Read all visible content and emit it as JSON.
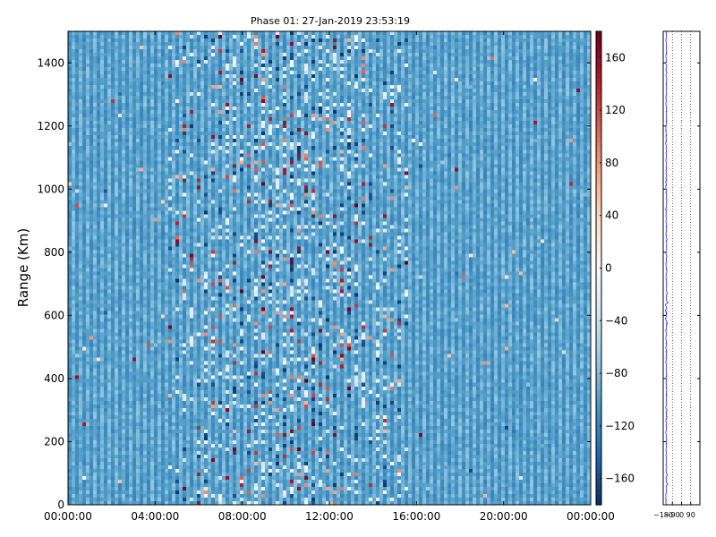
{
  "chart_data": [
    {
      "type": "heatmap",
      "title": "Phase 01: 27-Jan-2019 23:53:19",
      "xlabel": "",
      "ylabel": "Range (Km)",
      "x_ticks": [
        "00:00:00",
        "04:00:00",
        "08:00:00",
        "12:00:00",
        "16:00:00",
        "20:00:00",
        "00:00:00"
      ],
      "xlim_hours": [
        0,
        24
      ],
      "y_ticks": [
        0,
        200,
        400,
        600,
        800,
        1000,
        1200,
        1400
      ],
      "ylim": [
        0,
        1500
      ],
      "colorbar": {
        "colormap": "RdBu_r",
        "range": [
          -180,
          180
        ],
        "ticks": [
          160,
          120,
          80,
          40,
          0,
          -40,
          -80,
          -120,
          -160
        ],
        "colors": [
          "#67001f",
          "#b2182b",
          "#d6604d",
          "#f4a582",
          "#fddbc7",
          "#f7f7f7",
          "#d1e5f0",
          "#92c5de",
          "#4393c3",
          "#2166ac",
          "#053061"
        ]
      },
      "dominant_value": -110,
      "noisy_interval_hours": [
        4.5,
        15.5
      ]
    },
    {
      "type": "line",
      "x_ticks": [
        "-180",
        "-90",
        "0",
        "90"
      ],
      "xlim": [
        -180,
        180
      ],
      "ylim": [
        0,
        1500
      ],
      "grid_x": [
        -90,
        0,
        90
      ],
      "series_color": "#0000ff",
      "mean_value": -150
    }
  ]
}
